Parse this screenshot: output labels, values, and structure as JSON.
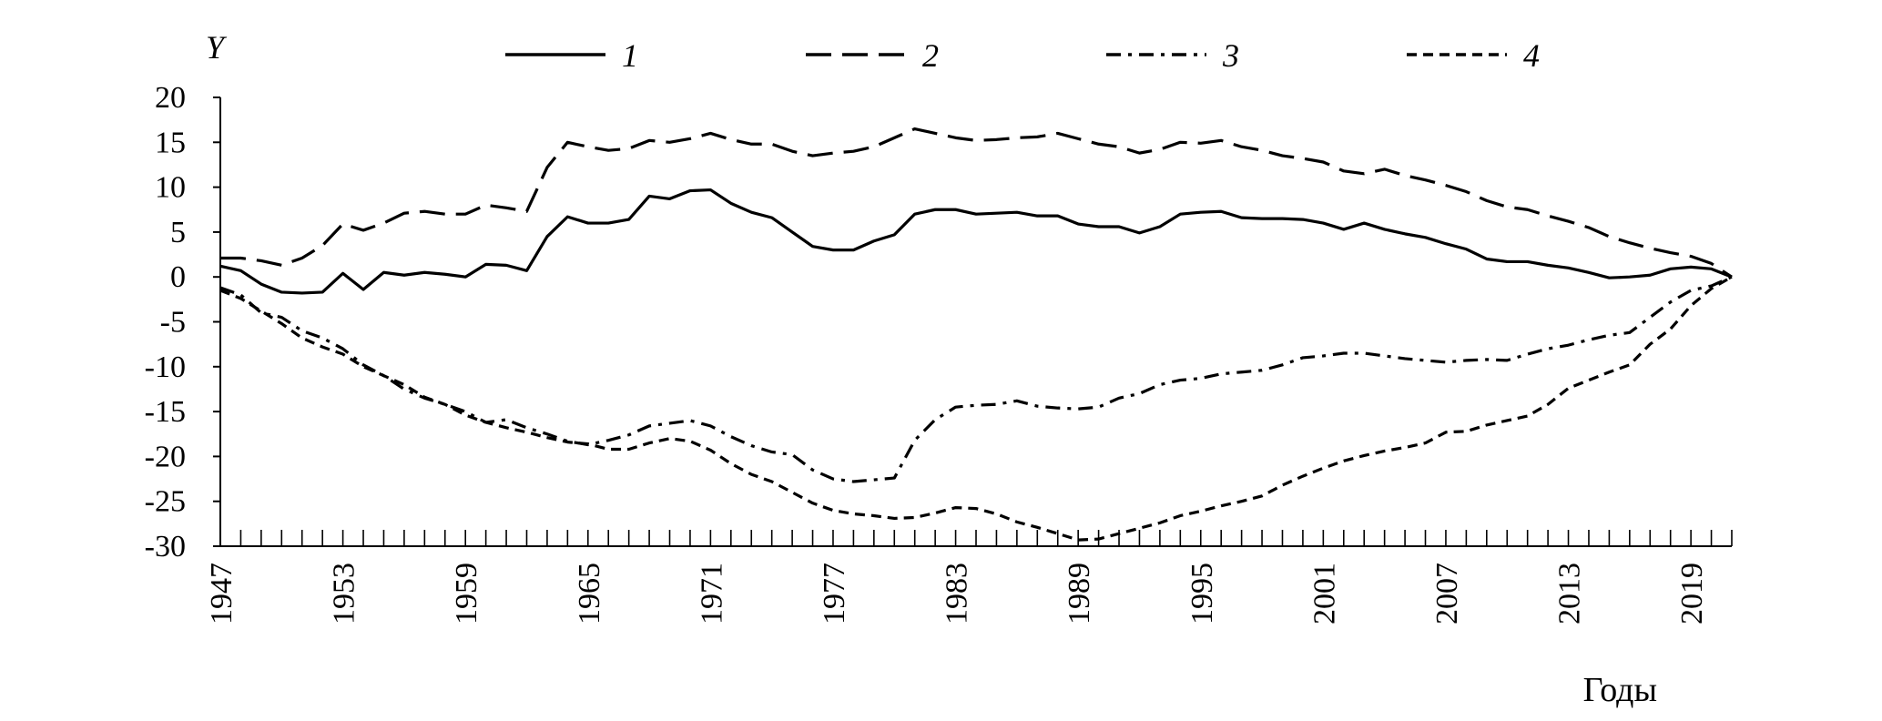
{
  "chart_data": {
    "type": "line",
    "title": "",
    "ylabel": "Y",
    "xlabel": "Годы",
    "ylim": [
      -30,
      20
    ],
    "yticks": [
      20,
      15,
      10,
      5,
      0,
      -5,
      -10,
      -15,
      -20,
      -25,
      -30
    ],
    "xlim": [
      1947,
      2021
    ],
    "xticks": [
      1947,
      1953,
      1959,
      1965,
      1971,
      1977,
      1983,
      1989,
      1995,
      2001,
      2007,
      2013,
      2019
    ],
    "x": [
      1947,
      1948,
      1949,
      1950,
      1951,
      1952,
      1953,
      1954,
      1955,
      1956,
      1957,
      1958,
      1959,
      1960,
      1961,
      1962,
      1963,
      1964,
      1965,
      1966,
      1967,
      1968,
      1969,
      1970,
      1971,
      1972,
      1973,
      1974,
      1975,
      1976,
      1977,
      1978,
      1979,
      1980,
      1981,
      1982,
      1983,
      1984,
      1985,
      1986,
      1987,
      1988,
      1989,
      1990,
      1991,
      1992,
      1993,
      1994,
      1995,
      1996,
      1997,
      1998,
      1999,
      2000,
      2001,
      2002,
      2003,
      2004,
      2005,
      2006,
      2007,
      2008,
      2009,
      2010,
      2011,
      2012,
      2013,
      2014,
      2015,
      2016,
      2017,
      2018,
      2019,
      2020,
      2021
    ],
    "legend_position": "top",
    "grid": false,
    "series": [
      {
        "name": "1",
        "style": "solid",
        "color": "#000000",
        "values": [
          1.2,
          0.7,
          -0.8,
          -1.7,
          -1.8,
          -1.7,
          0.4,
          -1.4,
          0.5,
          0.2,
          0.5,
          0.3,
          0.0,
          1.4,
          1.3,
          0.7,
          4.5,
          6.7,
          6.0,
          6.0,
          6.4,
          9.0,
          8.7,
          9.6,
          9.7,
          8.2,
          7.2,
          6.6,
          5.0,
          3.4,
          3.0,
          3.0,
          4.0,
          4.7,
          7.0,
          7.5,
          7.5,
          7.0,
          7.1,
          7.2,
          6.8,
          6.8,
          5.9,
          5.6,
          5.6,
          4.9,
          5.6,
          7.0,
          7.2,
          7.3,
          6.6,
          6.5,
          6.5,
          6.4,
          6.0,
          5.3,
          6.0,
          5.3,
          4.8,
          4.4,
          3.7,
          3.1,
          2.0,
          1.7,
          1.7,
          1.3,
          1.0,
          0.5,
          -0.1,
          0.0,
          0.2,
          0.9,
          1.1,
          0.9,
          0.0
        ]
      },
      {
        "name": "2",
        "style": "long-dash",
        "color": "#000000",
        "values": [
          2.1,
          2.1,
          1.8,
          1.3,
          2.1,
          3.5,
          5.9,
          5.2,
          6.0,
          7.1,
          7.3,
          7.0,
          7.0,
          8.0,
          7.7,
          7.3,
          12.2,
          15.0,
          14.5,
          14.1,
          14.3,
          15.2,
          15.0,
          15.4,
          16.0,
          15.3,
          14.8,
          14.8,
          14.0,
          13.5,
          13.8,
          14.0,
          14.5,
          15.5,
          16.5,
          16.0,
          15.5,
          15.2,
          15.3,
          15.5,
          15.6,
          16.0,
          15.4,
          14.8,
          14.5,
          13.8,
          14.2,
          15.0,
          14.9,
          15.2,
          14.5,
          14.1,
          13.5,
          13.2,
          12.8,
          11.8,
          11.5,
          12.0,
          11.3,
          10.8,
          10.2,
          9.5,
          8.5,
          7.8,
          7.5,
          6.8,
          6.2,
          5.5,
          4.5,
          3.8,
          3.2,
          2.7,
          2.3,
          1.5,
          0.0
        ]
      },
      {
        "name": "3",
        "style": "dash-dot",
        "color": "#000000",
        "values": [
          -1.2,
          -2.0,
          -4.0,
          -4.5,
          -6.0,
          -6.8,
          -8.0,
          -9.8,
          -11.0,
          -12.5,
          -13.5,
          -14.2,
          -15.0,
          -16.2,
          -15.9,
          -16.8,
          -17.5,
          -18.3,
          -18.7,
          -18.2,
          -17.6,
          -16.6,
          -16.3,
          -16.0,
          -16.6,
          -17.8,
          -18.8,
          -19.5,
          -19.8,
          -21.5,
          -22.5,
          -22.8,
          -22.6,
          -22.4,
          -18.2,
          -15.9,
          -14.5,
          -14.3,
          -14.2,
          -13.8,
          -14.4,
          -14.6,
          -14.7,
          -14.5,
          -13.5,
          -13.0,
          -12.0,
          -11.5,
          -11.3,
          -10.8,
          -10.6,
          -10.4,
          -9.8,
          -9.0,
          -8.8,
          -8.5,
          -8.5,
          -8.8,
          -9.1,
          -9.3,
          -9.5,
          -9.3,
          -9.2,
          -9.3,
          -8.6,
          -8.0,
          -7.6,
          -7.0,
          -6.5,
          -6.2,
          -4.5,
          -2.8,
          -1.5,
          -1.0,
          0.0
        ]
      },
      {
        "name": "4",
        "style": "short-dash",
        "color": "#000000",
        "values": [
          -1.5,
          -2.4,
          -3.8,
          -5.2,
          -6.8,
          -7.8,
          -8.6,
          -10.0,
          -11.0,
          -12.0,
          -13.4,
          -14.2,
          -15.4,
          -16.2,
          -16.8,
          -17.3,
          -17.9,
          -18.4,
          -18.6,
          -19.2,
          -19.2,
          -18.5,
          -18.0,
          -18.3,
          -19.3,
          -20.8,
          -22.0,
          -22.8,
          -24.0,
          -25.2,
          -26.0,
          -26.4,
          -26.6,
          -26.9,
          -26.8,
          -26.3,
          -25.7,
          -25.8,
          -26.4,
          -27.3,
          -27.9,
          -28.6,
          -29.3,
          -29.2,
          -28.6,
          -28.0,
          -27.4,
          -26.6,
          -26.1,
          -25.5,
          -25.0,
          -24.4,
          -23.2,
          -22.2,
          -21.3,
          -20.5,
          -19.9,
          -19.4,
          -19.0,
          -18.5,
          -17.3,
          -17.2,
          -16.5,
          -16.0,
          -15.5,
          -14.2,
          -12.4,
          -11.5,
          -10.6,
          -9.8,
          -7.5,
          -5.8,
          -3.2,
          -1.3,
          0.0
        ]
      }
    ]
  }
}
